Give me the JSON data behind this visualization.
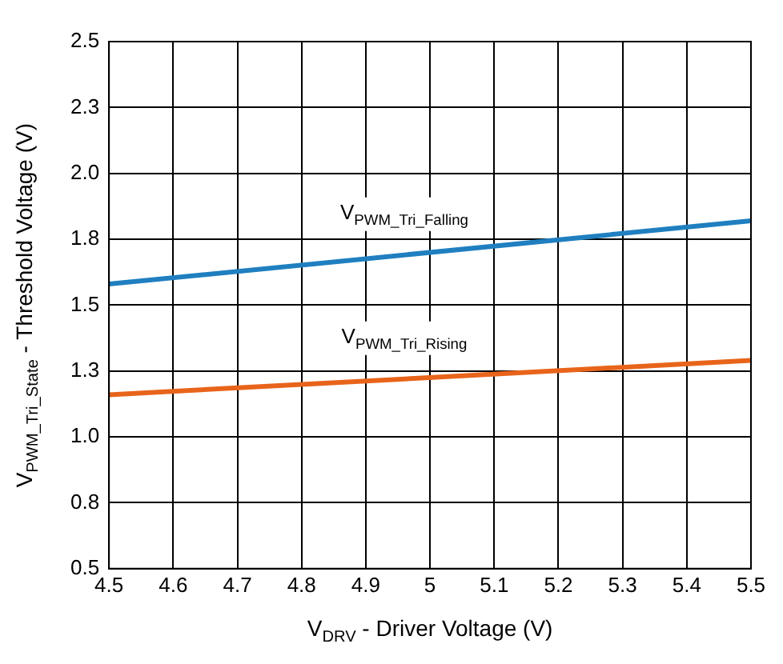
{
  "chart_data": {
    "type": "line",
    "xlabel": "V$_{DRV}$ - Driver Voltage (V)",
    "ylabel": "V$_{PWM_Tri_State}$ - Threshold Voltage (V)",
    "x": [
      4.5,
      5.5
    ],
    "series": [
      {
        "color": "#1f7fc0",
        "values": [
          1.58,
          1.82
        ]
      },
      {
        "color": "#e8641b",
        "values": [
          1.16,
          1.29
        ]
      }
    ],
    "xlim": [
      4.5,
      5.5
    ],
    "xticks": [
      4.5,
      4.6,
      4.7,
      4.8,
      4.9,
      5,
      5.1,
      5.2,
      5.3,
      5.4,
      5.5
    ],
    "ylim": [
      0.5,
      2.5
    ],
    "yticks": [
      0.5,
      {
        "value": 0.75,
        "label": "0.8"
      },
      {
        "value": 1,
        "label": "1.0"
      },
      {
        "value": 1.25,
        "label": "1.3"
      },
      1.5,
      {
        "value": 1.75,
        "label": "1.8"
      },
      {
        "value": 2,
        "label": "2.0"
      },
      {
        "value": 2.25,
        "label": "2.3"
      },
      2.5
    ],
    "grid": true,
    "legend": false,
    "marker": "none",
    "line_style": "solid",
    "annotations": [
      "V$_{PWM_Tri_Falling}$",
      "V$_{PWM_Tri_Rising}$"
    ]
  }
}
